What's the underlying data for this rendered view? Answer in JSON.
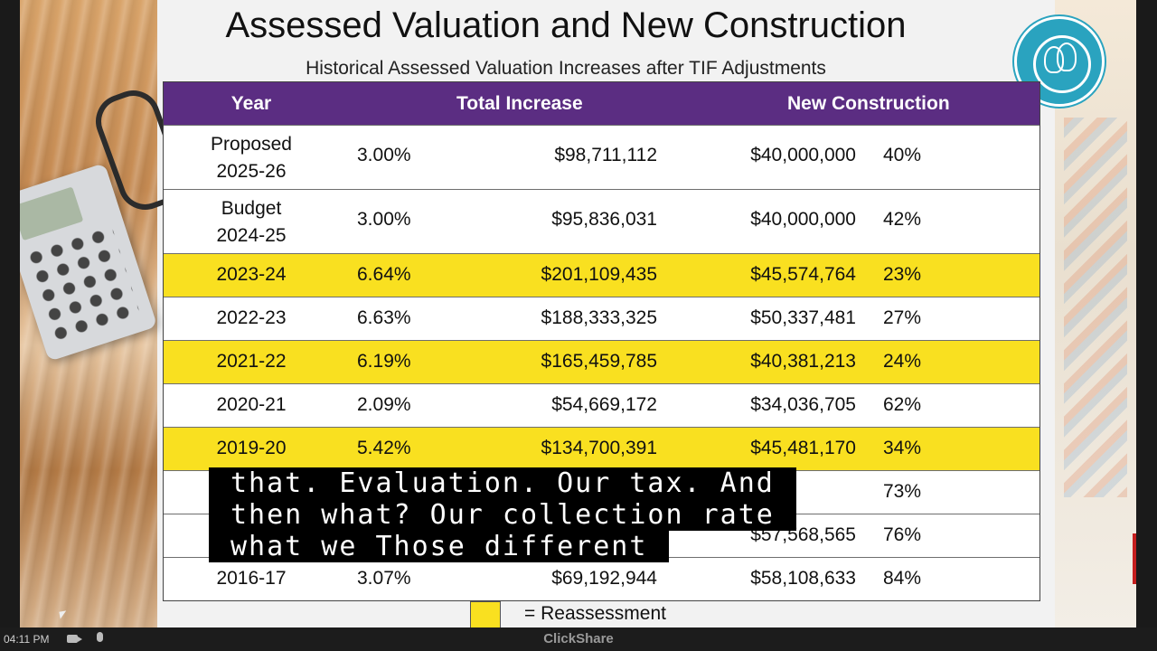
{
  "slide": {
    "title": "Assessed Valuation and New Construction",
    "subtitle": "Historical Assessed Valuation Increases after TIF Adjustments",
    "logo_name": "columbia-public-schools-logo"
  },
  "table": {
    "headers": {
      "year": "Year",
      "total": "Total Increase",
      "new": "New Construction"
    },
    "rows": [
      {
        "year": "Proposed\n2025-26",
        "pct": "3.00%",
        "total": "$98,711,112",
        "new": "$40,000,000",
        "share": "40%",
        "highlight": false
      },
      {
        "year": "Budget\n2024-25",
        "pct": "3.00%",
        "total": "$95,836,031",
        "new": "$40,000,000",
        "share": "42%",
        "highlight": false
      },
      {
        "year": "2023-24",
        "pct": "6.64%",
        "total": "$201,109,435",
        "new": "$45,574,764",
        "share": "23%",
        "highlight": true
      },
      {
        "year": "2022-23",
        "pct": "6.63%",
        "total": "$188,333,325",
        "new": "$50,337,481",
        "share": "27%",
        "highlight": false
      },
      {
        "year": "2021-22",
        "pct": "6.19%",
        "total": "$165,459,785",
        "new": "$40,381,213",
        "share": "24%",
        "highlight": true
      },
      {
        "year": "2020-21",
        "pct": "2.09%",
        "total": "$54,669,172",
        "new": "$34,036,705",
        "share": "62%",
        "highlight": false
      },
      {
        "year": "2019-20",
        "pct": "5.42%",
        "total": "$134,700,391",
        "new": "$45,481,170",
        "share": "34%",
        "highlight": true
      },
      {
        "year": "",
        "pct": "",
        "total": "",
        "new": "",
        "share": "73%",
        "highlight": false
      },
      {
        "year": "",
        "pct": "",
        "total": "",
        "new": "$57,568,565",
        "share": "76%",
        "highlight": false
      },
      {
        "year": "2016-17",
        "pct": "3.07%",
        "total": "$69,192,944",
        "new": "$58,108,633",
        "share": "84%",
        "highlight": false
      }
    ]
  },
  "legend": {
    "label": "= Reassessment",
    "color": "#f9e020"
  },
  "caption": {
    "lines": [
      "that. Evaluation. Our tax. And",
      "then what? Our collection rate",
      "what we Those different"
    ]
  },
  "bottombar": {
    "time": "04:11 PM",
    "brand": "ClickShare"
  },
  "colors": {
    "header": "#5b2d82",
    "highlight": "#f9e020"
  }
}
